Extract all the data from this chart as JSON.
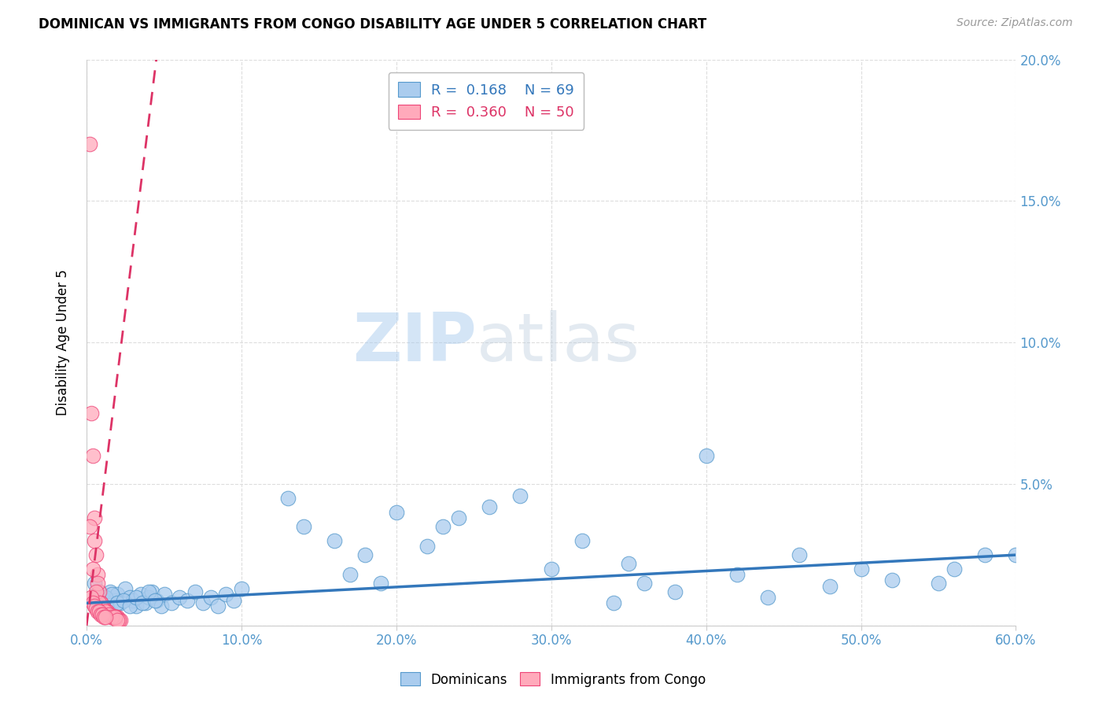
{
  "title": "DOMINICAN VS IMMIGRANTS FROM CONGO DISABILITY AGE UNDER 5 CORRELATION CHART",
  "source": "Source: ZipAtlas.com",
  "ylabel": "Disability Age Under 5",
  "xlim": [
    0,
    0.6
  ],
  "ylim": [
    0,
    0.2
  ],
  "xticks": [
    0.0,
    0.1,
    0.2,
    0.3,
    0.4,
    0.5,
    0.6
  ],
  "xtick_labels": [
    "0.0%",
    "10.0%",
    "20.0%",
    "30.0%",
    "40.0%",
    "50.0%",
    "60.0%"
  ],
  "yticks": [
    0.0,
    0.05,
    0.1,
    0.15,
    0.2
  ],
  "ytick_labels_right": [
    "",
    "5.0%",
    "10.0%",
    "15.0%",
    "20.0%"
  ],
  "blue_color": "#aaccee",
  "pink_color": "#ffaabb",
  "blue_edge_color": "#5599cc",
  "pink_edge_color": "#ee4477",
  "blue_line_color": "#3377bb",
  "pink_line_color": "#dd3366",
  "legend_blue_R": "0.168",
  "legend_blue_N": "69",
  "legend_pink_R": "0.360",
  "legend_pink_N": "50",
  "legend_label_blue": "Dominicans",
  "legend_label_pink": "Immigrants from Congo",
  "watermark_zip": "ZIP",
  "watermark_atlas": "atlas",
  "tick_color": "#5599cc",
  "blue_scatter_x": [
    0.005,
    0.008,
    0.01,
    0.012,
    0.015,
    0.018,
    0.02,
    0.022,
    0.025,
    0.028,
    0.03,
    0.032,
    0.035,
    0.038,
    0.04,
    0.042,
    0.045,
    0.048,
    0.05,
    0.055,
    0.06,
    0.065,
    0.07,
    0.075,
    0.08,
    0.085,
    0.09,
    0.095,
    0.1,
    0.005,
    0.008,
    0.012,
    0.016,
    0.02,
    0.024,
    0.028,
    0.032,
    0.036,
    0.04,
    0.044,
    0.13,
    0.2,
    0.23,
    0.35,
    0.4,
    0.44,
    0.48,
    0.3,
    0.32,
    0.36,
    0.26,
    0.28,
    0.42,
    0.46,
    0.5,
    0.52,
    0.55,
    0.58,
    0.38,
    0.16,
    0.18,
    0.22,
    0.24,
    0.34,
    0.56,
    0.6,
    0.14,
    0.17,
    0.19
  ],
  "blue_scatter_y": [
    0.008,
    0.006,
    0.01,
    0.007,
    0.012,
    0.009,
    0.011,
    0.008,
    0.013,
    0.01,
    0.009,
    0.007,
    0.011,
    0.008,
    0.01,
    0.012,
    0.009,
    0.007,
    0.011,
    0.008,
    0.01,
    0.009,
    0.012,
    0.008,
    0.01,
    0.007,
    0.011,
    0.009,
    0.013,
    0.015,
    0.012,
    0.01,
    0.011,
    0.008,
    0.009,
    0.007,
    0.01,
    0.008,
    0.012,
    0.009,
    0.045,
    0.04,
    0.035,
    0.022,
    0.06,
    0.01,
    0.014,
    0.02,
    0.03,
    0.015,
    0.042,
    0.046,
    0.018,
    0.025,
    0.02,
    0.016,
    0.015,
    0.025,
    0.012,
    0.03,
    0.025,
    0.028,
    0.038,
    0.008,
    0.02,
    0.025,
    0.035,
    0.018,
    0.015
  ],
  "pink_scatter_x": [
    0.002,
    0.004,
    0.005,
    0.006,
    0.007,
    0.008,
    0.009,
    0.01,
    0.011,
    0.012,
    0.013,
    0.014,
    0.015,
    0.016,
    0.017,
    0.018,
    0.019,
    0.02,
    0.021,
    0.022,
    0.003,
    0.005,
    0.007,
    0.009,
    0.011,
    0.013,
    0.015,
    0.017,
    0.019,
    0.021,
    0.002,
    0.004,
    0.006,
    0.008,
    0.01,
    0.012,
    0.014,
    0.016,
    0.018,
    0.02,
    0.003,
    0.004,
    0.005,
    0.006,
    0.007,
    0.008,
    0.009,
    0.01,
    0.011,
    0.012
  ],
  "pink_scatter_y": [
    0.17,
    0.06,
    0.038,
    0.025,
    0.018,
    0.012,
    0.008,
    0.007,
    0.006,
    0.005,
    0.005,
    0.004,
    0.004,
    0.003,
    0.003,
    0.003,
    0.003,
    0.003,
    0.002,
    0.002,
    0.075,
    0.03,
    0.015,
    0.008,
    0.006,
    0.005,
    0.004,
    0.003,
    0.003,
    0.002,
    0.035,
    0.02,
    0.012,
    0.008,
    0.006,
    0.005,
    0.004,
    0.003,
    0.003,
    0.002,
    0.01,
    0.008,
    0.007,
    0.006,
    0.005,
    0.005,
    0.004,
    0.004,
    0.003,
    0.003
  ],
  "blue_trend_x": [
    0.0,
    0.6
  ],
  "blue_trend_y": [
    0.008,
    0.025
  ],
  "pink_trend_x": [
    0.0,
    0.045
  ],
  "pink_trend_y": [
    0.0,
    0.2
  ]
}
